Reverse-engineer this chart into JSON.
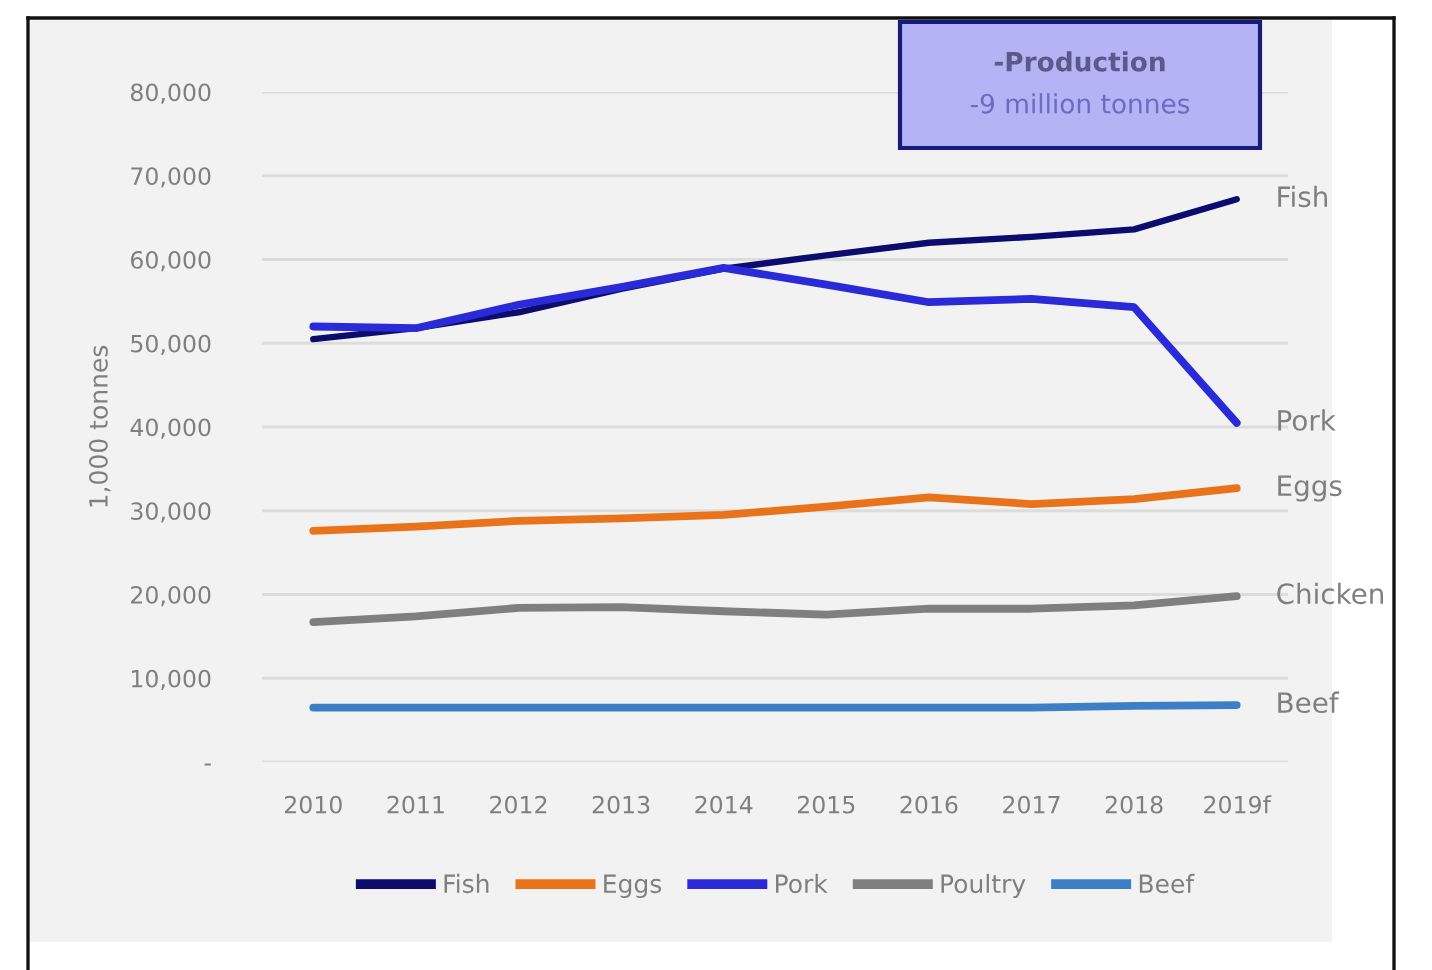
{
  "chart_data": {
    "type": "line",
    "ylabel": "1,000 tonnes",
    "categories": [
      "2010",
      "2011",
      "2012",
      "2013",
      "2014",
      "2015",
      "2016",
      "2017",
      "2018",
      "2019f"
    ],
    "series": [
      {
        "name": "Fish",
        "color": "#0c0c6e",
        "values": [
          50500,
          51800,
          53700,
          56500,
          58900,
          60500,
          62000,
          62700,
          63600,
          67200
        ]
      },
      {
        "name": "Eggs",
        "color": "#e8731a",
        "values": [
          27600,
          28100,
          28800,
          29100,
          29500,
          30500,
          31600,
          30800,
          31400,
          32700
        ]
      },
      {
        "name": "Pork",
        "color": "#2a2ad8",
        "values": [
          52000,
          51800,
          54600,
          56700,
          59000,
          57000,
          54900,
          55300,
          54300,
          40500
        ]
      },
      {
        "name": "Poultry",
        "color": "#7f7f7f",
        "values": [
          16700,
          17400,
          18400,
          18500,
          18000,
          17600,
          18300,
          18300,
          18700,
          19800
        ]
      },
      {
        "name": "Beef",
        "color": "#3d7fc6",
        "values": [
          6500,
          6500,
          6500,
          6500,
          6500,
          6500,
          6500,
          6500,
          6700,
          6800
        ]
      }
    ],
    "ylim": [
      0,
      80000
    ],
    "yticks": [
      {
        "value": 0,
        "label": "-"
      },
      {
        "value": 10000,
        "label": "10,000"
      },
      {
        "value": 20000,
        "label": "20,000"
      },
      {
        "value": 30000,
        "label": "30,000"
      },
      {
        "value": 40000,
        "label": "40,000"
      },
      {
        "value": 50000,
        "label": "50,000"
      },
      {
        "value": 60000,
        "label": "60,000"
      },
      {
        "value": 70000,
        "label": "70,000"
      },
      {
        "value": 80000,
        "label": "80,000"
      }
    ],
    "grid": "y",
    "legend": "bottom",
    "annotations": [
      {
        "text": "Fish",
        "x": "2019f",
        "y": 67200
      },
      {
        "text": "Pork",
        "x": "2019f",
        "y": 40500
      },
      {
        "text": "Eggs",
        "x": "2019f",
        "y": 32700
      },
      {
        "text": "Chicken",
        "x": "2019f",
        "y": 19800
      },
      {
        "text": "Beef",
        "x": "2019f",
        "y": 6800
      },
      "-Production",
      "-9 million tonnes"
    ]
  }
}
